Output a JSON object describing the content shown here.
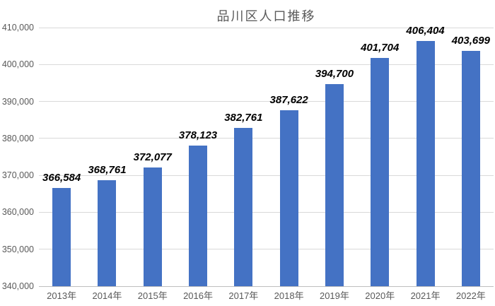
{
  "chart_data": {
    "type": "bar",
    "title": "品川区人口推移",
    "categories": [
      "2013年",
      "2014年",
      "2015年",
      "2016年",
      "2017年",
      "2018年",
      "2019年",
      "2020年",
      "2021年",
      "2022年"
    ],
    "values": [
      366584,
      368761,
      372077,
      378123,
      382761,
      387622,
      394700,
      401704,
      406404,
      403699
    ],
    "data_labels": [
      "366,584",
      "368,761",
      "372,077",
      "378,123",
      "382,761",
      "387,622",
      "394,700",
      "401,704",
      "406,404",
      "403,699"
    ],
    "xlabel": "",
    "ylabel": "",
    "ylim": [
      340000,
      410000
    ],
    "y_ticks": [
      {
        "label": "340,000",
        "value": 340000
      },
      {
        "label": "350,000",
        "value": 350000
      },
      {
        "label": "360,000",
        "value": 360000
      },
      {
        "label": "370,000",
        "value": 370000
      },
      {
        "label": "380,000",
        "value": 380000
      },
      {
        "label": "390,000",
        "value": 390000
      },
      {
        "label": "400,000",
        "value": 400000
      },
      {
        "label": "410,000",
        "value": 410000
      }
    ],
    "grid": true,
    "legend_position": "none",
    "colors": {
      "bar": "#4472c4",
      "gridline": "#d9d9d9",
      "axis": "#bfbfbf",
      "tick_text": "#595959",
      "title_text": "#595959",
      "data_label_text": "#000000",
      "background": "#ffffff"
    }
  }
}
